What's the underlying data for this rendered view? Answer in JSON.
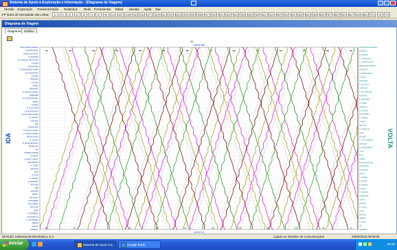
{
  "window": {
    "title": "Sistema de Apoio à Exploração e Informação - [Diagrama de Viagem]",
    "menu": [
      "Sessão",
      "Exploração",
      "Parametrização",
      "Relatórios",
      "Rede",
      "Ferramentas",
      "Editar",
      "Janelas",
      "Ajuda",
      "Sair"
    ]
  },
  "toolbar": {
    "label": "1ªP  Índice de Serenidade das Linhas",
    "line_numbers": [
      "11",
      "22",
      "31",
      "33",
      "69",
      "70",
      "91",
      "98",
      "101",
      "102",
      "105",
      "106",
      "126",
      "127",
      "200",
      "201",
      "202",
      "203",
      "204",
      "205",
      "206",
      "207",
      "300",
      "301",
      "302",
      "303",
      "304",
      "305",
      "400",
      "401",
      "402",
      "500",
      "501",
      "502",
      "503",
      "504",
      "505",
      "506",
      "507",
      "600",
      "601",
      "602",
      "603",
      "604",
      "701",
      "702",
      "703"
    ]
  },
  "panel": {
    "title": "Diagrama de Viagem",
    "tabs": [
      "Diagrama",
      "Gráfico"
    ]
  },
  "chart_data": {
    "type": "line",
    "title": "LINHA 900",
    "left_label": "IDA",
    "right_label": "VOLTA",
    "top_marker": "51\n52",
    "x_bottom_label": "2006/07/15",
    "bottom_ticks": [
      "501",
      "V1",
      "",
      "V5",
      "V6",
      "V1",
      "V2",
      "V5",
      "V6",
      "V1",
      "V6",
      "V1"
    ],
    "top_ticks": [
      "51",
      "V1",
      "V2",
      "V3",
      "V4",
      "V5",
      "V6",
      "V1",
      "V2",
      "V3",
      "V4",
      "V5",
      "V6",
      "V1"
    ],
    "colors": {
      "magenta": "#e020d8",
      "green": "#2aa32a",
      "olive": "#a8a02a",
      "darkred": "#7a1010",
      "dotted": "#7a7a7a",
      "labels": "#0a3da0",
      "right_labels": "#138c8c"
    },
    "left_stops": [
      "PRAÇA BOM SUCESSO",
      "CHAMPALIMAUD",
      "CIDADE DO PORTO",
      "R. BOAVISTA",
      "R. GONÇALO CRISTOVÃO",
      "GUARDA",
      "MAGALHÃES",
      "R. FERNANDES TOMÁS",
      "AV. DA BOAVISTA",
      "COLISEU",
      "TRINDADE",
      "ALIADOS",
      "PRAÇA",
      "FERNANDO",
      "R. SANTA CATARINA",
      "CAMPANHÃ",
      "R. DE MONTEVIDEU",
      "PEDRO",
      "ALIANÇA",
      "R. JULIO DINIS",
      "CASA DA MUSICA",
      "AV. BOAVISTA NORTE",
      "AV. FRANÇA",
      "LUSITÂNIA",
      "RUA",
      "CARVALHIDO",
      "FONTE DA MOURA",
      "R. CAMPO ALEGRE",
      "PRAÇA GALIZA",
      "R. FAUSTO",
      "R. DIOGO BOTELHO",
      "SERRALVES",
      "FOZ",
      "PASSEIO ALEGRE",
      "R. BRASIL",
      "CASTELO QUEIJO",
      "MATOSINHOS",
      "R. CONDE",
      "SENHORA",
      "LEÇA",
      "R. NOVA",
      "R. PARQUE",
      "R. ARMANDO",
      "ROTUNDA",
      "MAR",
      "ESTAÇÃO",
      "BAIRRO",
      "FOZ VELHA",
      "CANTAREIRA",
      "FELGUEIRAS",
      "SÃO JOÃO",
      "OURO",
      "R. ARRÁBIDA",
      "MASSARELOS",
      "R. ALFÂNDEGA",
      "RIBEIRA",
      "INFANTE",
      "TERMINAL"
    ],
    "right_stops": [
      "PRAÇA BOM SUCESSO",
      "BOAVISTA",
      "R. BONFIM",
      "R. CARVALHIDO",
      "R. CONSTITUIÇÃO",
      "FERNANDO PESSOA",
      "MARQUÊS",
      "CHAMPALIMAUD",
      "ALIADOS",
      "TRINDADE",
      "R. DE CEUTA",
      "CLÉRIGOS",
      "R. DOS BRAGAS",
      "HOSPITAL",
      "R. MARTIRES",
      "R. ANÍBAL",
      "CAMPO 24",
      "R. ALEGRIA",
      "FERNANDES",
      "S. LÁZARO",
      "JARDIM",
      "BATALHA",
      "R. FORMOSA",
      "CASA",
      "BOLHÃO",
      "R. STA CATARINA",
      "ESTAÇÃO",
      "R. SÁ BANDEIRA",
      "LAPA",
      "RUA",
      "CARMO",
      "PASSOS MANUEL",
      "CORDOARIA",
      "R. ALMADA",
      "LEÕES",
      "R. CONDE",
      "R. BOLÉU",
      "R. CHAVES",
      "FLORES",
      "R. PARQUE",
      "CAMPANHÃ",
      "ANTAS",
      "DRAGÃO",
      "R. COSTA",
      "VOLTA",
      "INFANTE",
      "RIBEIRA",
      "R. NOVA",
      "SÉ",
      "TERMINAL"
    ],
    "series": [
      {
        "color": "magenta",
        "direction": "up",
        "starts": [
          0.02,
          0.17,
          0.32,
          0.47,
          0.62,
          0.77,
          0.92
        ]
      },
      {
        "color": "magenta",
        "direction": "down",
        "starts": [
          0.1,
          0.25,
          0.4,
          0.55,
          0.7,
          0.85
        ]
      },
      {
        "color": "green",
        "direction": "up",
        "starts": [
          0.06,
          0.21,
          0.36,
          0.51,
          0.66,
          0.81
        ]
      },
      {
        "color": "green",
        "direction": "down",
        "starts": [
          0.14,
          0.29,
          0.44,
          0.59,
          0.74,
          0.89
        ]
      },
      {
        "color": "olive",
        "direction": "up",
        "starts": [
          0.0,
          0.15,
          0.3,
          0.45,
          0.6,
          0.75,
          0.9
        ]
      },
      {
        "color": "olive",
        "direction": "down",
        "starts": [
          0.08,
          0.23,
          0.38,
          0.53,
          0.68,
          0.83
        ]
      },
      {
        "color": "darkred",
        "direction": "down",
        "starts": [
          0.04,
          0.19,
          0.34,
          0.49,
          0.64,
          0.79,
          0.94
        ]
      },
      {
        "color": "darkred",
        "direction": "up",
        "starts": [
          0.12,
          0.27,
          0.42,
          0.57,
          0.72,
          0.87
        ]
      },
      {
        "color": "dotted",
        "direction": "up",
        "starts": [
          0.03,
          0.11,
          0.18,
          0.26,
          0.33,
          0.41,
          0.48,
          0.56,
          0.63,
          0.71,
          0.78,
          0.86,
          0.93
        ]
      },
      {
        "color": "dotted",
        "direction": "down",
        "starts": [
          0.07,
          0.14,
          0.22,
          0.29,
          0.37,
          0.44,
          0.52,
          0.59,
          0.67,
          0.74,
          0.82,
          0.89,
          0.96
        ]
      }
    ]
  },
  "status": {
    "company": "EFACEC Sistemas de Electrónica, S.A.",
    "connection": "Ligado ao Interface de Comunicações",
    "datetime": "29/06/2015 09:59:56"
  },
  "taskbar": {
    "start_label": "Iniciar",
    "buttons": [
      "Sistema de Apoio à E...",
      "Google Earth"
    ],
    "clock": "09:59"
  }
}
